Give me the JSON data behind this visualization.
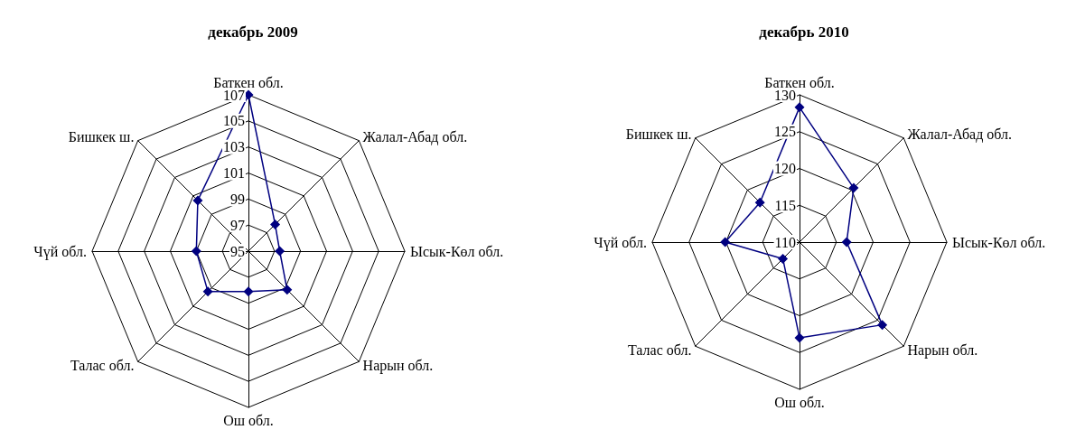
{
  "chart_data": [
    {
      "type": "radar",
      "title": "декабрь 2009",
      "categories": [
        "Баткен обл.",
        "Жалал-Абад обл.",
        "Ысык-Көл обл.",
        "Нарын обл.",
        "Ош обл.",
        "Талас обл.",
        "Чүй обл.",
        "Бишкек ш."
      ],
      "series": [
        {
          "color": "#000080",
          "values": [
            107,
            97.9,
            97.4,
            99.2,
            98.1,
            99.4,
            99.0,
            100.5
          ]
        }
      ],
      "ylim": [
        95,
        107
      ],
      "yticks": [
        95,
        97,
        99,
        101,
        103,
        105,
        107
      ],
      "grid": true,
      "marker": "diamond"
    },
    {
      "type": "radar",
      "title": "декабрь 2010",
      "categories": [
        "Баткен обл.",
        "Жалал-Абад обл.",
        "Ысык-Көл обл.",
        "Нарын обл.",
        "Ош обл.",
        "Талас обл.",
        "Чүй обл.",
        "Бишкек ш."
      ],
      "series": [
        {
          "color": "#000080",
          "values": [
            128.3,
            120.4,
            116.4,
            125.9,
            123.0,
            113.2,
            120.1,
            117.6
          ]
        }
      ],
      "ylim": [
        110,
        130
      ],
      "yticks": [
        110,
        115,
        120,
        125,
        130
      ],
      "grid": true,
      "marker": "diamond"
    }
  ]
}
